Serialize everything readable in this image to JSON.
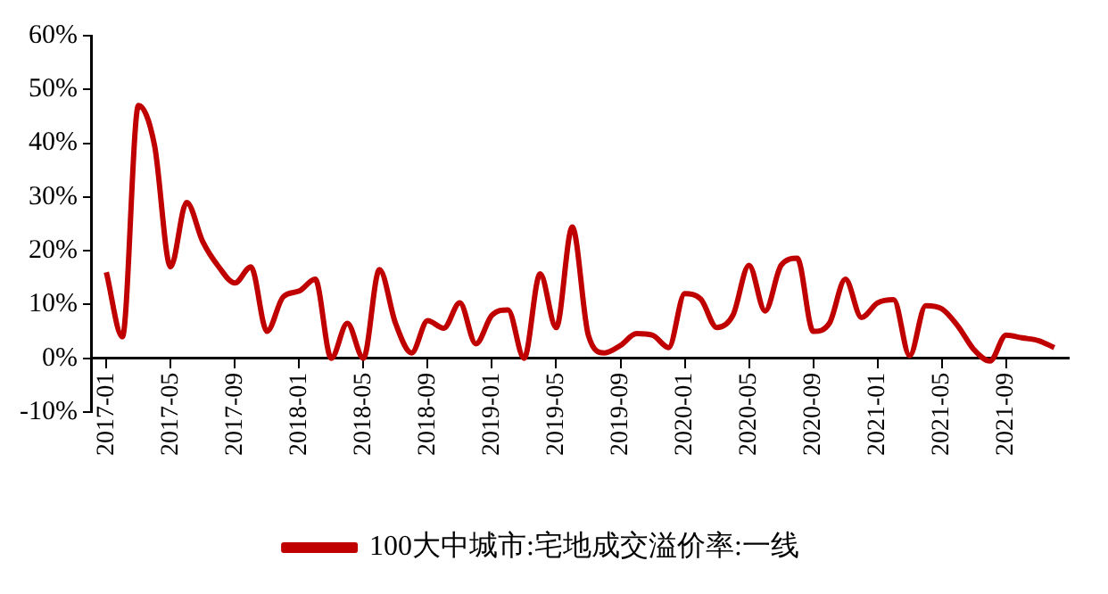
{
  "chart_data": {
    "type": "line",
    "categories": [
      "2017-01",
      null,
      null,
      null,
      "2017-05",
      null,
      null,
      null,
      "2017-09",
      null,
      null,
      null,
      "2018-01",
      null,
      null,
      null,
      "2018-05",
      null,
      null,
      null,
      "2018-09",
      null,
      null,
      null,
      "2019-01",
      null,
      null,
      null,
      "2019-05",
      null,
      null,
      null,
      "2019-09",
      null,
      null,
      null,
      "2020-01",
      null,
      null,
      null,
      "2020-05",
      null,
      null,
      null,
      "2020-09",
      null,
      null,
      null,
      "2021-01",
      null,
      null,
      null,
      "2021-05",
      null,
      null,
      null,
      "2021-09",
      null,
      null,
      null
    ],
    "series": [
      {
        "name": "100大中城市:宅地成交溢价率:一线",
        "color": "#c00000",
        "values": [
          16,
          4,
          47,
          39.6,
          17,
          29,
          21.7,
          17,
          14,
          17,
          5,
          11.4,
          12.5,
          14.7,
          0,
          6.5,
          0,
          16.5,
          6.5,
          1,
          7,
          5.6,
          10.3,
          2.7,
          8,
          9,
          0,
          15.7,
          5.7,
          24.4,
          4.3,
          1,
          2.4,
          4.6,
          4.3,
          2,
          12,
          11,
          5.7,
          8,
          17.3,
          8.8,
          17.3,
          18.6,
          5,
          6.5,
          14.7,
          7.6,
          10.3,
          10.9,
          0.5,
          9.8,
          9.2,
          6,
          1.6,
          -0.5,
          4.3,
          3.8,
          3.3,
          2
        ]
      }
    ],
    "ylim": [
      -10,
      60
    ],
    "yticks": [
      {
        "value": -10,
        "label": "-10%"
      },
      {
        "value": 0,
        "label": "0%"
      },
      {
        "value": 10,
        "label": "10%"
      },
      {
        "value": 20,
        "label": "20%"
      },
      {
        "value": 30,
        "label": "30%"
      },
      {
        "value": 40,
        "label": "40%"
      },
      {
        "value": 50,
        "label": "50%"
      },
      {
        "value": 60,
        "label": "60%"
      }
    ],
    "grid": false,
    "legend": "bottom",
    "marker": "none",
    "line_style": "solid"
  }
}
